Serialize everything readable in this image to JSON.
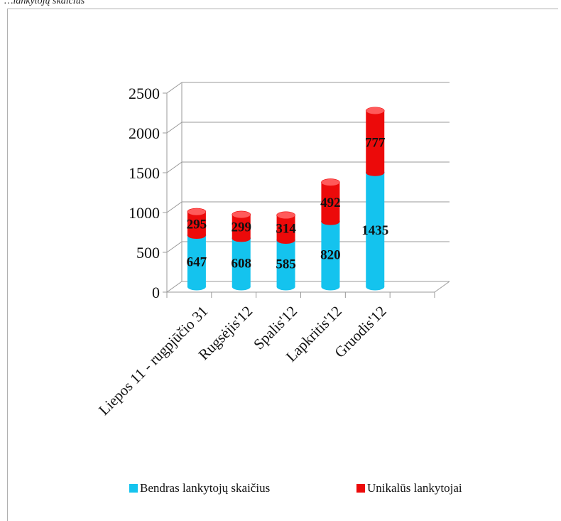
{
  "caption": "…lankytojų skaičius",
  "colors": {
    "series_total": "#14c3ee",
    "series_total_top": "#7fe4fb",
    "series_unique": "#ec0a0a",
    "series_unique_top": "#ff5a5a",
    "grid": "#9a9a9a",
    "text": "#111111"
  },
  "chart_data": {
    "type": "bar",
    "stacked": true,
    "three_d": true,
    "categories": [
      "Liepos 11 - rugpjūčio 31",
      "Rugsėjis'12",
      "Spalis'12",
      "Lapkritis'12",
      "Gruodis'12"
    ],
    "series": [
      {
        "name": "Bendras lankytojų skaičius",
        "values": [
          647,
          608,
          585,
          820,
          1435
        ]
      },
      {
        "name": "Unikalūs lankytojai",
        "values": [
          295,
          299,
          314,
          492,
          777
        ]
      }
    ],
    "yticks": [
      "0",
      "500",
      "1000",
      "1500",
      "2000",
      "2500"
    ],
    "ylim": [
      0,
      2500
    ],
    "grid": true,
    "legend_position": "bottom"
  }
}
